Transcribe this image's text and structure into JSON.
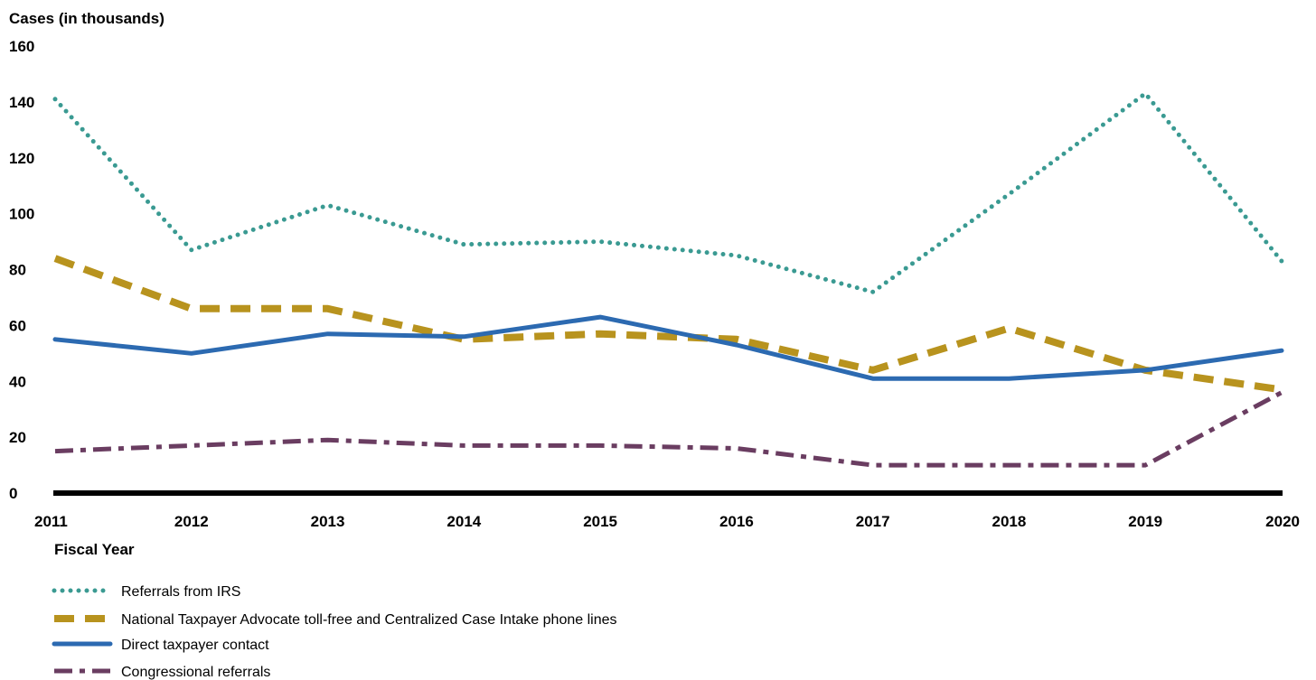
{
  "chart_data": {
    "type": "line",
    "ylabel": "Cases (in thousands)",
    "xlabel": "Fiscal Year",
    "ylim": [
      0,
      160
    ],
    "y_ticks": [
      0,
      20,
      40,
      60,
      80,
      100,
      120,
      140,
      160
    ],
    "categories": [
      "2011",
      "2012",
      "2013",
      "2014",
      "2015",
      "2016",
      "2017",
      "2018",
      "2019",
      "2020"
    ],
    "grid": false,
    "legend_position": "bottom-left",
    "series": [
      {
        "name": "Referrals from IRS",
        "color": "#3a9a92",
        "style": "dotted",
        "values": [
          141,
          87,
          103,
          89,
          90,
          85,
          72,
          107,
          143,
          83
        ]
      },
      {
        "name": "National Taxpayer Advocate toll-free and Centralized Case Intake phone lines",
        "color": "#b8931e",
        "style": "dashed",
        "values": [
          84,
          66,
          66,
          55,
          57,
          55,
          44,
          59,
          44,
          37
        ]
      },
      {
        "name": "Direct taxpayer contact",
        "color": "#2c6ab1",
        "style": "solid",
        "values": [
          55,
          50,
          57,
          56,
          63,
          53,
          41,
          41,
          44,
          51
        ]
      },
      {
        "name": "Congressional referrals",
        "color": "#6a3d61",
        "style": "dashdot",
        "values": [
          15,
          17,
          19,
          17,
          17,
          16,
          10,
          10,
          10,
          36
        ]
      }
    ]
  }
}
